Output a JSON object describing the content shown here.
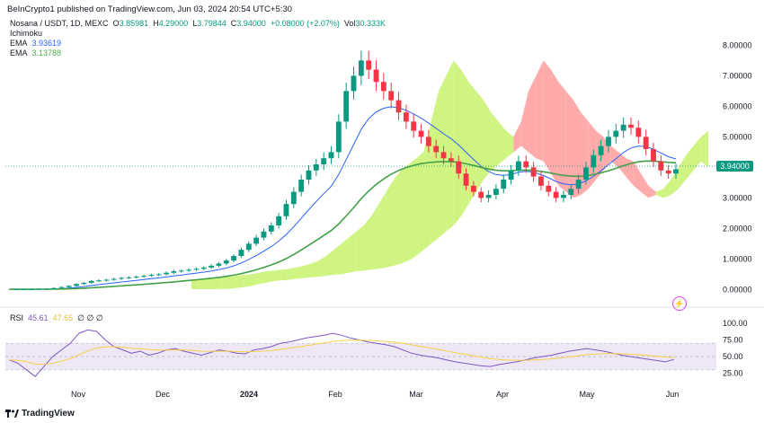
{
  "header": {
    "publish_text": "BeInCrypto1 published on TradingView.com, Jun 03, 2024 20:54 UTC+5:30"
  },
  "legend": {
    "symbol": "Nosana / USDT, 1D, MEXC",
    "ohlc": [
      {
        "k": "O",
        "v": "3.85981"
      },
      {
        "k": "H",
        "v": "4.29000"
      },
      {
        "k": "L",
        "v": "3.79844"
      },
      {
        "k": "C",
        "v": "3.94000"
      }
    ],
    "change": "+0.08000 (+2.07%)",
    "vol_label": "Vol",
    "vol_value": "30.333K",
    "ichimoku": "Ichimoku",
    "ema1_label": "EMA",
    "ema1_value": "3.93619",
    "ema2_label": "EMA",
    "ema2_value": "3.13788"
  },
  "rsi": {
    "label": "RSI",
    "value": "45.61",
    "ma_value": "47.65",
    "placeholders": "∅ ∅ ∅"
  },
  "price_tag": "3.94000",
  "branding": "TradingView",
  "colors": {
    "up": "#089981",
    "down": "#f23645",
    "ema_fast": "#2962ff",
    "ema_slow": "#43a047",
    "cloud_bull": "#c8f26b",
    "cloud_bear": "#ff9c9c",
    "rsi_line": "#7e57c2",
    "rsi_ma": "#f5d04a"
  },
  "chart_data": [
    {
      "type": "line",
      "title": "",
      "y_ticks": [
        "8.00000",
        "7.00000",
        "6.00000",
        "5.00000",
        "4.00000",
        "3.00000",
        "2.00000",
        "1.00000",
        "0.00000"
      ],
      "x_ticks": [
        "Nov",
        "Dec",
        "2024",
        "Feb",
        "Mar",
        "Apr",
        "May",
        "Jun"
      ],
      "ylim": [
        -0.4,
        8.6
      ],
      "series": [
        {
          "name": "",
          "description_values": "close",
          "values": [
            0.01,
            0.01,
            0.01,
            0.01,
            0.02,
            0.02,
            0.05,
            0.08,
            0.12,
            0.18,
            0.22,
            0.28,
            0.3,
            0.32,
            0.35,
            0.38,
            0.4,
            0.42,
            0.45,
            0.48,
            0.5,
            0.55,
            0.6,
            0.62,
            0.65,
            0.68,
            0.72,
            0.78,
            0.85,
            0.95,
            1.1,
            1.3,
            1.5,
            1.7,
            1.9,
            2.1,
            2.4,
            2.8,
            3.2,
            3.6,
            3.9,
            4.1,
            4.3,
            4.5,
            5.5,
            6.5,
            7.0,
            7.5,
            7.2,
            6.8,
            6.5,
            6.2,
            5.8,
            5.5,
            5.2,
            5.0,
            4.7,
            4.5,
            4.3,
            4.2,
            3.8,
            3.4,
            3.2,
            3.0,
            3.1,
            3.3,
            3.6,
            3.9,
            4.2,
            4.0,
            3.7,
            3.4,
            3.2,
            3.0,
            3.1,
            3.3,
            3.6,
            4.0,
            4.4,
            4.7,
            5.0,
            5.2,
            5.4,
            5.3,
            5.0,
            4.6,
            4.2,
            3.9,
            3.8,
            3.94
          ]
        }
      ]
    },
    {
      "type": "line",
      "title": "RSI",
      "y_ticks": [
        "100.00",
        "75.00",
        "50.00",
        "25.00"
      ],
      "ylim": [
        0,
        100
      ],
      "series": [
        {
          "name": "",
          "values": [
            45,
            40,
            30,
            20,
            35,
            50,
            60,
            70,
            85,
            90,
            88,
            75,
            65,
            60,
            55,
            58,
            52,
            55,
            60,
            62,
            58,
            55,
            52,
            56,
            60,
            58,
            55,
            54,
            60,
            62,
            65,
            70,
            72,
            75,
            78,
            80,
            82,
            85,
            82,
            78,
            75,
            72,
            70,
            68,
            65,
            60,
            55,
            52,
            50,
            48,
            45,
            42,
            40,
            38,
            36,
            35,
            38,
            40,
            42,
            45,
            48,
            50,
            52,
            55,
            58,
            60,
            62,
            60,
            58,
            55,
            52,
            50,
            48,
            46,
            44,
            42,
            45.61
          ]
        }
      ]
    }
  ]
}
